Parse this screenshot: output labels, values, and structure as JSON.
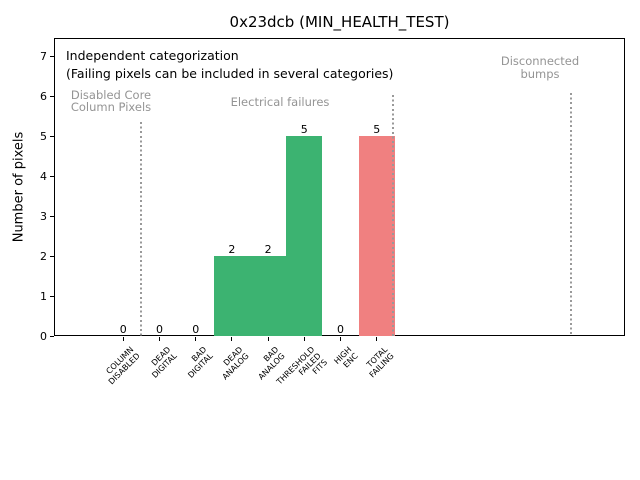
{
  "title": "0x23dcb (MIN_HEALTH_TEST)",
  "ylabel": "Number of pixels",
  "annotation": {
    "line1": "Independent categorization",
    "line2": "(Failing pixels can be included in several categories)"
  },
  "sections": [
    {
      "name": "disabled-core-column-pixels",
      "lines": [
        "Disabled Core",
        "Column Pixels"
      ]
    },
    {
      "name": "electrical-failures",
      "lines": [
        "Electrical failures"
      ]
    },
    {
      "name": "disconnected-bumps",
      "lines": [
        "Disconnected",
        "bumps"
      ]
    }
  ],
  "chart_data": {
    "type": "bar",
    "title": "0x23dcb (MIN_HEALTH_TEST)",
    "xlabel": "",
    "ylabel": "Number of pixels",
    "categories": [
      "COLUMN DISABLED",
      "DEAD DIGITAL",
      "BAD DIGITAL",
      "DEAD ANALOG",
      "BAD ANALOG",
      "THRESHOLD FAILED FITS",
      "HIGH ENC",
      "TOTAL FAILING"
    ],
    "category_lines": [
      [
        "COLUMN",
        "DISABLED"
      ],
      [
        "DEAD",
        "DIGITAL"
      ],
      [
        "BAD",
        "DIGITAL"
      ],
      [
        "DEAD",
        "ANALOG"
      ],
      [
        "BAD",
        "ANALOG"
      ],
      [
        "THRESHOLD",
        "FAILED",
        "FITS"
      ],
      [
        "HIGH",
        "ENC"
      ],
      [
        "TOTAL",
        "FAILING"
      ]
    ],
    "values": [
      0,
      0,
      0,
      2,
      2,
      5,
      0,
      5
    ],
    "bar_value_labels": [
      "0",
      "0",
      "0",
      "2",
      "2",
      "5",
      "0",
      "5"
    ],
    "bar_colors": [
      null,
      null,
      null,
      "#3cb371",
      "#3cb371",
      "#3cb371",
      null,
      "#f08080"
    ],
    "yticks": [
      0,
      1,
      2,
      3,
      4,
      5,
      6,
      7
    ],
    "ylim": [
      0,
      7.45
    ],
    "grid": false,
    "legend": null,
    "section_separators_data_x": [
      0.5,
      7.45,
      12.36
    ],
    "annotations": [
      "Independent categorization",
      "(Failing pixels can be included in several categories)",
      "Disabled Core Column Pixels",
      "Electrical failures",
      "Disconnected bumps"
    ]
  },
  "colors": {
    "bar_green": "#3cb371",
    "bar_red": "#f08080",
    "section_text": "#949494",
    "separator": "#999999",
    "axis": "#000000",
    "background": "#ffffff"
  }
}
